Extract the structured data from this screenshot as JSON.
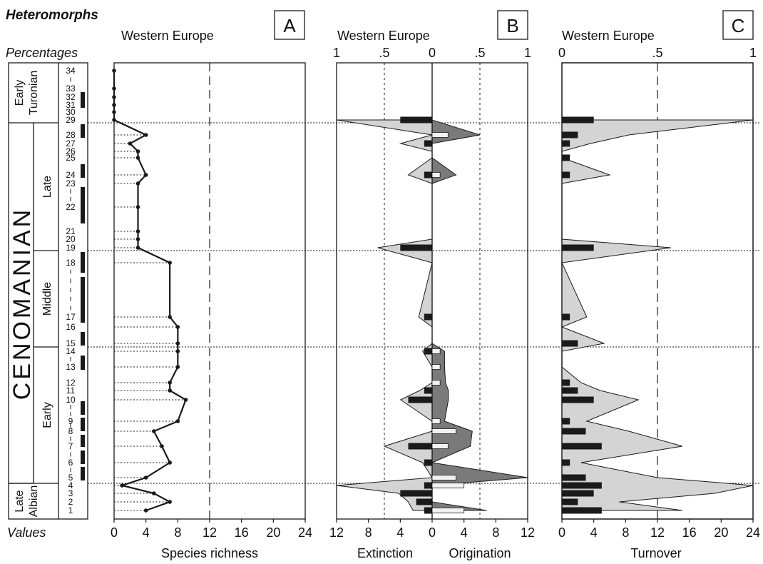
{
  "figure": {
    "title": "Heteromorphs",
    "percentages_label": "Percentages",
    "values_label": "Values",
    "region": "Western Europe"
  },
  "stratigraphy": {
    "stage": "CENOMANIAN",
    "substages": [
      {
        "label": "Early Turonian",
        "lines": [
          "Early",
          "Turonian"
        ],
        "from": 29,
        "to": 34
      },
      {
        "label": "Late",
        "lines": [
          "Late"
        ],
        "from": 19,
        "to": 28
      },
      {
        "label": "Middle",
        "lines": [
          "Middle"
        ],
        "from": 15,
        "to": 18
      },
      {
        "label": "Early",
        "lines": [
          "Early"
        ],
        "from": 5,
        "to": 14
      },
      {
        "label": "Late Albian",
        "lines": [
          "Late",
          "Albian"
        ],
        "from": 1,
        "to": 4
      }
    ],
    "zone_labels": [
      {
        "text": "34",
        "zone": 34
      },
      {
        "text": "33",
        "zone": 33
      },
      {
        "text": "32",
        "zone": 32
      },
      {
        "text": "31",
        "zone": 31
      },
      {
        "text": "30",
        "zone": 30
      },
      {
        "text": "29",
        "zone": 29
      },
      {
        "text": "28",
        "zone": 28
      },
      {
        "text": "27",
        "zone": 27
      },
      {
        "text": "26",
        "zone": 26
      },
      {
        "text": "25",
        "zone": 25
      },
      {
        "text": "24",
        "zone": 24
      },
      {
        "text": "23",
        "zone": 23
      },
      {
        "text": "22",
        "zone": 22
      },
      {
        "text": "21",
        "zone": 21
      },
      {
        "text": "20",
        "zone": 20
      },
      {
        "text": "19",
        "zone": 19
      },
      {
        "text": "18",
        "zone": 18
      },
      {
        "text": "17",
        "zone": 17
      },
      {
        "text": "16",
        "zone": 16
      },
      {
        "text": "15",
        "zone": 15
      },
      {
        "text": "14",
        "zone": 14
      },
      {
        "text": "13",
        "zone": 13
      },
      {
        "text": "12",
        "zone": 12
      },
      {
        "text": "11",
        "zone": 11
      },
      {
        "text": "10",
        "zone": 10
      },
      {
        "text": "9",
        "zone": 9
      },
      {
        "text": "8",
        "zone": 8
      },
      {
        "text": "7",
        "zone": 7
      },
      {
        "text": "6",
        "zone": 6
      },
      {
        "text": "5",
        "zone": 5
      },
      {
        "text": "4",
        "zone": 4
      },
      {
        "text": "3",
        "zone": 3
      },
      {
        "text": "2",
        "zone": 2
      },
      {
        "text": "1",
        "zone": 1
      }
    ],
    "boundaries": [
      "Cenomanian / Turonian",
      "Late / Middle Cenomanian",
      "Middle / Early Cenomanian",
      "Cenomanian / Albian"
    ]
  },
  "chart_data": [
    {
      "panel": "A",
      "type": "line",
      "region": "Western Europe",
      "xlabel": "Species richness",
      "xlim": [
        0,
        24
      ],
      "x_ticks": [
        "0",
        "4",
        "8",
        "12",
        "16",
        "20",
        "24"
      ],
      "reference_line": 12,
      "series": [
        {
          "values": [
            {
              "zone": 1,
              "x": 4
            },
            {
              "zone": 2,
              "x": 7
            },
            {
              "zone": 3,
              "x": 5
            },
            {
              "zone": 4,
              "x": 1
            },
            {
              "zone": 5,
              "x": 4
            },
            {
              "zone": 6,
              "x": 7
            },
            {
              "zone": 7,
              "x": 6
            },
            {
              "zone": 8,
              "x": 5
            },
            {
              "zone": 9,
              "x": 8
            },
            {
              "zone": 10,
              "x": 9
            },
            {
              "zone": 11,
              "x": 7
            },
            {
              "zone": 12,
              "x": 7
            },
            {
              "zone": 13,
              "x": 8
            },
            {
              "zone": 14,
              "x": 8
            },
            {
              "zone": 15,
              "x": 8
            },
            {
              "zone": 16,
              "x": 8
            },
            {
              "zone": 17,
              "x": 7
            },
            {
              "zone": 18,
              "x": 7
            },
            {
              "zone": 19,
              "x": 3
            },
            {
              "zone": 20,
              "x": 3
            },
            {
              "zone": 21,
              "x": 3
            },
            {
              "zone": 22,
              "x": 3
            },
            {
              "zone": 23,
              "x": 3
            },
            {
              "zone": 24,
              "x": 4
            },
            {
              "zone": 25,
              "x": 3
            },
            {
              "zone": 26,
              "x": 3
            },
            {
              "zone": 27,
              "x": 2
            },
            {
              "zone": 28,
              "x": 4
            },
            {
              "zone": 29,
              "x": 0
            },
            {
              "zone": 30,
              "x": 0
            },
            {
              "zone": 31,
              "x": 0
            },
            {
              "zone": 32,
              "x": 0
            },
            {
              "zone": 33,
              "x": 0
            },
            {
              "zone": 34,
              "x": 0
            }
          ]
        }
      ]
    },
    {
      "panel": "B",
      "type": "area",
      "region": "Western Europe",
      "xlabel_left": "Extinction",
      "xlabel_right": "Origination",
      "xlim": [
        0,
        12
      ],
      "x_ticks": [
        "12",
        "8",
        "4",
        "0",
        "4",
        "8",
        "12"
      ],
      "percent_ticks": [
        "1",
        ".5",
        "0",
        ".5",
        "1"
      ],
      "series": [
        {
          "name": "Extinction",
          "percent": [
            {
              "zone": 1,
              "x": 0.2
            },
            {
              "zone": 2,
              "x": 0.25
            },
            {
              "zone": 3,
              "x": 0.35
            },
            {
              "zone": 4,
              "x": 1.0
            },
            {
              "zone": 5,
              "x": 0.0
            },
            {
              "zone": 6,
              "x": 0.1
            },
            {
              "zone": 7,
              "x": 0.5
            },
            {
              "zone": 8,
              "x": 0.0
            },
            {
              "zone": 9,
              "x": 0.0
            },
            {
              "zone": 10,
              "x": 0.33
            },
            {
              "zone": 11,
              "x": 0.13
            },
            {
              "zone": 12,
              "x": 0.0
            },
            {
              "zone": 13,
              "x": 0.0
            },
            {
              "zone": 14,
              "x": 0.1
            },
            {
              "zone": 15,
              "x": 0.0
            },
            {
              "zone": 16,
              "x": 0.0
            },
            {
              "zone": 17,
              "x": 0.14
            },
            {
              "zone": 18,
              "x": 0.0
            },
            {
              "zone": 19,
              "x": 0.57
            },
            {
              "zone": 20,
              "x": 0.0
            },
            {
              "zone": 21,
              "x": 0.0
            },
            {
              "zone": 22,
              "x": 0.0
            },
            {
              "zone": 23,
              "x": 0.0
            },
            {
              "zone": 24,
              "x": 0.25
            },
            {
              "zone": 25,
              "x": 0.0
            },
            {
              "zone": 26,
              "x": 0.0
            },
            {
              "zone": 27,
              "x": 0.33
            },
            {
              "zone": 28,
              "x": 0.0
            },
            {
              "zone": 29,
              "x": 1.0
            }
          ],
          "counts": [
            {
              "zone": 1,
              "value": 1
            },
            {
              "zone": 2,
              "value": 2
            },
            {
              "zone": 3,
              "value": 4
            },
            {
              "zone": 4,
              "value": 1
            },
            {
              "zone": 6,
              "value": 1
            },
            {
              "zone": 7,
              "value": 3
            },
            {
              "zone": 10,
              "value": 3
            },
            {
              "zone": 11,
              "value": 1
            },
            {
              "zone": 14,
              "value": 1
            },
            {
              "zone": 17,
              "value": 1
            },
            {
              "zone": 19,
              "value": 4
            },
            {
              "zone": 24,
              "value": 1
            },
            {
              "zone": 27,
              "value": 1
            },
            {
              "zone": 29,
              "value": 4
            }
          ]
        },
        {
          "name": "Origination",
          "percent": [
            {
              "zone": 1,
              "x": 0.57
            },
            {
              "zone": 2,
              "x": 0.0
            },
            {
              "zone": 3,
              "x": 0.0
            },
            {
              "zone": 4,
              "x": 0.0
            },
            {
              "zone": 5,
              "x": 1.0
            },
            {
              "zone": 6,
              "x": 0.0
            },
            {
              "zone": 7,
              "x": 0.4
            },
            {
              "zone": 8,
              "x": 0.42
            },
            {
              "zone": 9,
              "x": 0.13
            },
            {
              "zone": 10,
              "x": 0.17
            },
            {
              "zone": 11,
              "x": 0.17
            },
            {
              "zone": 12,
              "x": 0.14
            },
            {
              "zone": 13,
              "x": 0.13
            },
            {
              "zone": 14,
              "x": 0.13
            },
            {
              "zone": 15,
              "x": 0.0
            },
            {
              "zone": 16,
              "x": 0.0
            },
            {
              "zone": 17,
              "x": 0.0
            },
            {
              "zone": 18,
              "x": 0.0
            },
            {
              "zone": 19,
              "x": 0.0
            },
            {
              "zone": 20,
              "x": 0.0
            },
            {
              "zone": 21,
              "x": 0.0
            },
            {
              "zone": 22,
              "x": 0.0
            },
            {
              "zone": 23,
              "x": 0.0
            },
            {
              "zone": 24,
              "x": 0.25
            },
            {
              "zone": 25,
              "x": 0.0
            },
            {
              "zone": 26,
              "x": 0.0
            },
            {
              "zone": 27,
              "x": 0.0
            },
            {
              "zone": 28,
              "x": 0.5
            },
            {
              "zone": 29,
              "x": 0.0
            }
          ],
          "counts": [
            {
              "zone": 1,
              "value": 4
            },
            {
              "zone": 4,
              "value": 4
            },
            {
              "zone": 5,
              "value": 3
            },
            {
              "zone": 7,
              "value": 2
            },
            {
              "zone": 8,
              "value": 3
            },
            {
              "zone": 9,
              "value": 1
            },
            {
              "zone": 12,
              "value": 1
            },
            {
              "zone": 13,
              "value": 1
            },
            {
              "zone": 14,
              "value": 1
            },
            {
              "zone": 24,
              "value": 1
            },
            {
              "zone": 28,
              "value": 2
            }
          ]
        }
      ]
    },
    {
      "panel": "C",
      "type": "area",
      "region": "Western Europe",
      "xlabel": "Turnover",
      "xlim": [
        0,
        24
      ],
      "x_ticks": [
        "0",
        "4",
        "8",
        "12",
        "16",
        "20",
        "24"
      ],
      "percent_ticks": [
        "0",
        ".5",
        "1"
      ],
      "reference_line": 12,
      "series": [
        {
          "name": "Turnover",
          "percent": [
            {
              "zone": 1,
              "x": 0.63
            },
            {
              "zone": 2,
              "x": 0.3
            },
            {
              "zone": 3,
              "x": 0.8
            },
            {
              "zone": 4,
              "x": 1.0
            },
            {
              "zone": 5,
              "x": 0.5
            },
            {
              "zone": 6,
              "x": 0.1
            },
            {
              "zone": 7,
              "x": 0.63
            },
            {
              "zone": 8,
              "x": 0.35
            },
            {
              "zone": 9,
              "x": 0.13
            },
            {
              "zone": 10,
              "x": 0.4
            },
            {
              "zone": 11,
              "x": 0.2
            },
            {
              "zone": 12,
              "x": 0.1
            },
            {
              "zone": 13,
              "x": 0.0
            },
            {
              "zone": 14,
              "x": 0.0
            },
            {
              "zone": 15,
              "x": 0.22
            },
            {
              "zone": 16,
              "x": 0.0
            },
            {
              "zone": 17,
              "x": 0.13
            },
            {
              "zone": 18,
              "x": 0.0
            },
            {
              "zone": 19,
              "x": 0.57
            },
            {
              "zone": 20,
              "x": 0.0
            },
            {
              "zone": 21,
              "x": 0.0
            },
            {
              "zone": 22,
              "x": 0.0
            },
            {
              "zone": 23,
              "x": 0.0
            },
            {
              "zone": 24,
              "x": 0.25
            },
            {
              "zone": 25,
              "x": 0.0
            },
            {
              "zone": 26,
              "x": 0.0
            },
            {
              "zone": 27,
              "x": 0.15
            },
            {
              "zone": 28,
              "x": 0.35
            },
            {
              "zone": 29,
              "x": 1.0
            }
          ],
          "counts": [
            {
              "zone": 1,
              "value": 5
            },
            {
              "zone": 2,
              "value": 2
            },
            {
              "zone": 3,
              "value": 4
            },
            {
              "zone": 4,
              "value": 5
            },
            {
              "zone": 5,
              "value": 3
            },
            {
              "zone": 6,
              "value": 1
            },
            {
              "zone": 7,
              "value": 5
            },
            {
              "zone": 8,
              "value": 3
            },
            {
              "zone": 9,
              "value": 1
            },
            {
              "zone": 10,
              "value": 4
            },
            {
              "zone": 11,
              "value": 2
            },
            {
              "zone": 12,
              "value": 1
            },
            {
              "zone": 15,
              "value": 2
            },
            {
              "zone": 17,
              "value": 1
            },
            {
              "zone": 19,
              "value": 4
            },
            {
              "zone": 24,
              "value": 1
            },
            {
              "zone": 25,
              "value": 1
            },
            {
              "zone": 27,
              "value": 1
            },
            {
              "zone": 28,
              "value": 2
            },
            {
              "zone": 29,
              "value": 4
            }
          ]
        }
      ]
    }
  ],
  "panel_letters": [
    "A",
    "B",
    "C"
  ],
  "colors": {
    "area_fill": "#d4d4d4",
    "origination_fill": "#7a7a7a",
    "bar_dark": "#1a1a1a",
    "bar_light": "#f2f2f2",
    "stroke": "#1a1a1a"
  }
}
